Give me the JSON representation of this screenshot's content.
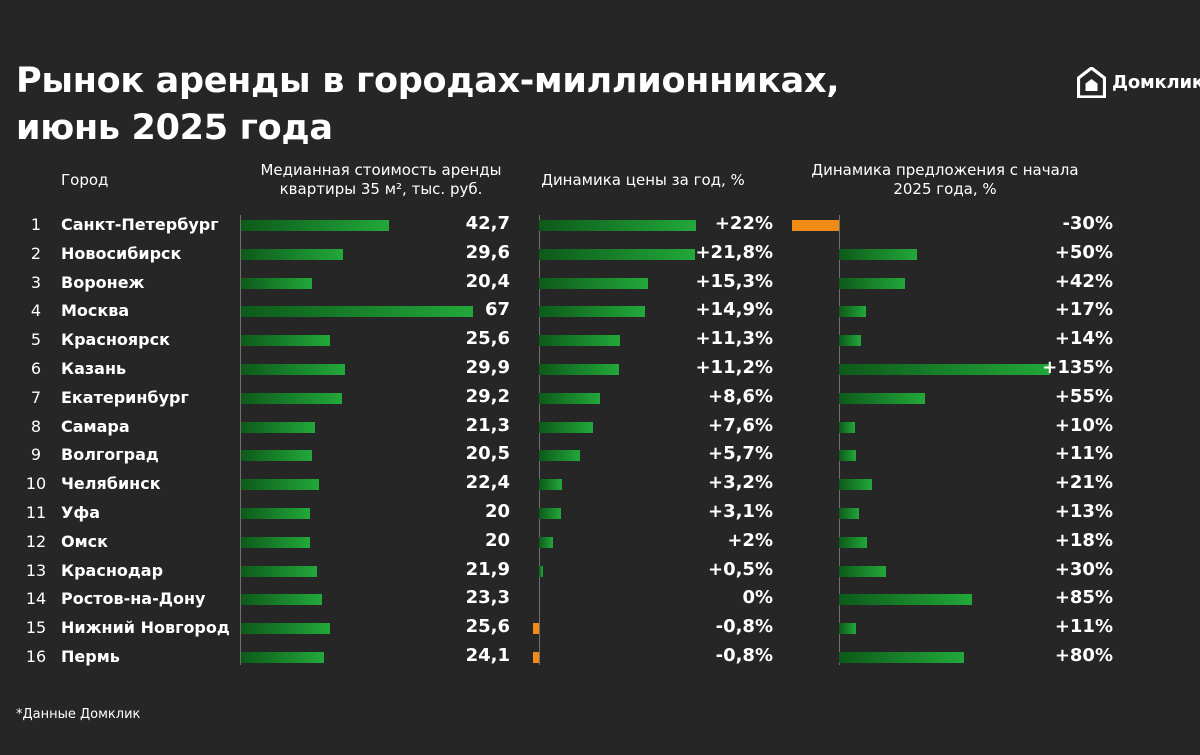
{
  "title": {
    "line1": "Рынок аренды в городах-миллионниках,",
    "line2": "июнь 2025 года"
  },
  "logo": {
    "text": "Домклик",
    "icon": "domclick-house-icon"
  },
  "headers": {
    "city": "Город",
    "rent": "Медианная стоимость аренды квартиры 35 м², тыс. руб.",
    "price": "Динамика цены за год, %",
    "supply": "Динамика предложения с начала 2025 года, %"
  },
  "colors": {
    "background": "#262626",
    "positive": "#22a83a",
    "negative": "#f08b16",
    "text": "#ffffff"
  },
  "chart_data": {
    "type": "bar",
    "title": "Рынок аренды в городах-миллионниках, июнь 2025 года",
    "categories": [
      "Санкт-Петербург",
      "Новосибирск",
      "Воронеж",
      "Москва",
      "Красноярск",
      "Казань",
      "Екатеринбург",
      "Самара",
      "Волгоград",
      "Челябинск",
      "Уфа",
      "Омск",
      "Краснодар",
      "Ростов-на-Дону",
      "Нижний Новгород",
      "Пермь"
    ],
    "rows": [
      {
        "rank": "1",
        "city": "Санкт-Петербург",
        "rent": 42.7,
        "rent_label": "42,7",
        "price": 22,
        "price_label": "+22%",
        "supply": -30,
        "supply_label": "-30%"
      },
      {
        "rank": "2",
        "city": "Новосибирск",
        "rent": 29.6,
        "rent_label": "29,6",
        "price": 21.8,
        "price_label": "+21,8%",
        "supply": 50,
        "supply_label": "+50%"
      },
      {
        "rank": "3",
        "city": "Воронеж",
        "rent": 20.4,
        "rent_label": "20,4",
        "price": 15.3,
        "price_label": "+15,3%",
        "supply": 42,
        "supply_label": "+42%"
      },
      {
        "rank": "4",
        "city": "Москва",
        "rent": 67,
        "rent_label": "67",
        "price": 14.9,
        "price_label": "+14,9%",
        "supply": 17,
        "supply_label": "+17%"
      },
      {
        "rank": "5",
        "city": "Красноярск",
        "rent": 25.6,
        "rent_label": "25,6",
        "price": 11.3,
        "price_label": "+11,3%",
        "supply": 14,
        "supply_label": "+14%"
      },
      {
        "rank": "6",
        "city": "Казань",
        "rent": 29.9,
        "rent_label": "29,9",
        "price": 11.2,
        "price_label": "+11,2%",
        "supply": 135,
        "supply_label": "+135%"
      },
      {
        "rank": "7",
        "city": "Екатеринбург",
        "rent": 29.2,
        "rent_label": "29,2",
        "price": 8.6,
        "price_label": "+8,6%",
        "supply": 55,
        "supply_label": "+55%"
      },
      {
        "rank": "8",
        "city": "Самара",
        "rent": 21.3,
        "rent_label": "21,3",
        "price": 7.6,
        "price_label": "+7,6%",
        "supply": 10,
        "supply_label": "+10%"
      },
      {
        "rank": "9",
        "city": "Волгоград",
        "rent": 20.5,
        "rent_label": "20,5",
        "price": 5.7,
        "price_label": "+5,7%",
        "supply": 11,
        "supply_label": "+11%"
      },
      {
        "rank": "10",
        "city": "Челябинск",
        "rent": 22.4,
        "rent_label": "22,4",
        "price": 3.2,
        "price_label": "+3,2%",
        "supply": 21,
        "supply_label": "+21%"
      },
      {
        "rank": "11",
        "city": "Уфа",
        "rent": 20,
        "rent_label": "20",
        "price": 3.1,
        "price_label": "+3,1%",
        "supply": 13,
        "supply_label": "+13%"
      },
      {
        "rank": "12",
        "city": "Омск",
        "rent": 20,
        "rent_label": "20",
        "price": 2,
        "price_label": "+2%",
        "supply": 18,
        "supply_label": "+18%"
      },
      {
        "rank": "13",
        "city": "Краснодар",
        "rent": 21.9,
        "rent_label": "21,9",
        "price": 0.5,
        "price_label": "+0,5%",
        "supply": 30,
        "supply_label": "+30%"
      },
      {
        "rank": "14",
        "city": "Ростов-на-Дону",
        "rent": 23.3,
        "rent_label": "23,3",
        "price": 0,
        "price_label": "0%",
        "supply": 85,
        "supply_label": "+85%"
      },
      {
        "rank": "15",
        "city": "Нижний Новгород",
        "rent": 25.6,
        "rent_label": "25,6",
        "price": -0.8,
        "price_label": "-0,8%",
        "supply": 11,
        "supply_label": "+11%"
      },
      {
        "rank": "16",
        "city": "Пермь",
        "rent": 24.1,
        "rent_label": "24,1",
        "price": -0.8,
        "price_label": "-0,8%",
        "supply": 80,
        "supply_label": "+80%"
      }
    ],
    "series": [
      {
        "name": "Медианная стоимость аренды квартиры 35 м², тыс. руб.",
        "key": "rent",
        "range": [
          0,
          67
        ]
      },
      {
        "name": "Динамика цены за год, %",
        "key": "price",
        "range": [
          -0.8,
          22
        ]
      },
      {
        "name": "Динамика предложения с начала 2025 года, %",
        "key": "supply",
        "range": [
          -30,
          135
        ]
      }
    ]
  },
  "footnote": "*Данные Домклик"
}
